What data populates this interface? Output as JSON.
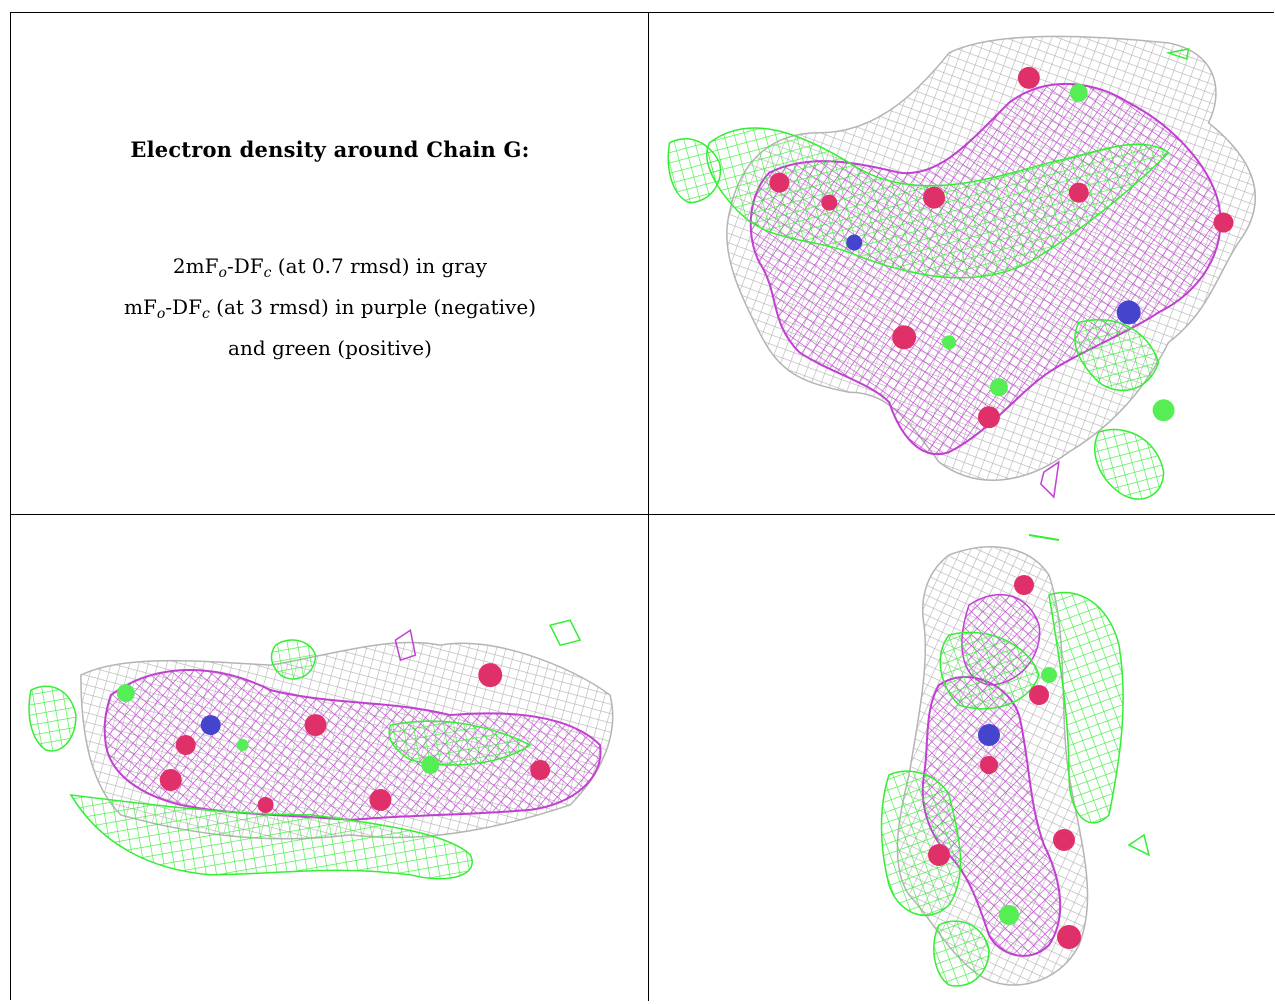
{
  "caption": {
    "title": "Electron density around Chain G:",
    "legend": [
      {
        "prefix": "2mF",
        "sub1": "o",
        "mid": "-DF",
        "sub2": "c",
        "rest": " (at 0.7 rmsd) in gray"
      },
      {
        "prefix": "mF",
        "sub1": "o",
        "mid": "-DF",
        "sub2": "c",
        "rest": " (at 3 rmsd) in purple (negative)"
      },
      {
        "text": "and green (positive)"
      }
    ]
  },
  "colors": {
    "gray_mesh": "#b4b4b4",
    "purple_mesh": "#c040d0",
    "green_mesh": "#33ee33",
    "oxygen_sphere": "#e0306a",
    "nitrogen_sphere": "#4444cc",
    "carbon_sphere": "#55ee55"
  },
  "panels": [
    {
      "name": "view-top-right"
    },
    {
      "name": "view-bottom-left"
    },
    {
      "name": "view-bottom-right"
    }
  ]
}
